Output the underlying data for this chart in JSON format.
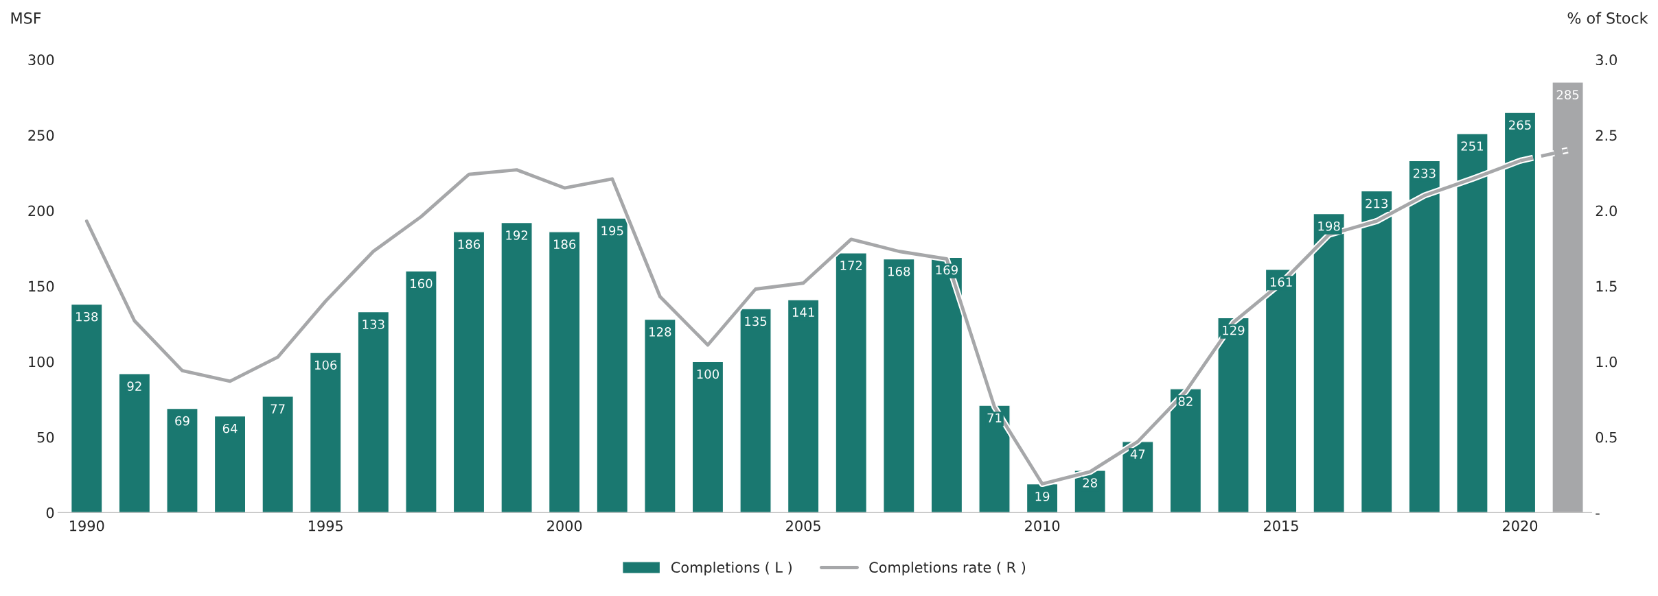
{
  "chart_data": {
    "type": "bar",
    "ylabel": "MSF",
    "y2label": "% of Stock",
    "categories": [
      "1990",
      null,
      null,
      null,
      null,
      "1995",
      null,
      null,
      null,
      null,
      "2000",
      null,
      null,
      null,
      null,
      "2005",
      null,
      null,
      null,
      null,
      "2010",
      null,
      null,
      null,
      null,
      "2015",
      null,
      null,
      null,
      null,
      "2020",
      null
    ],
    "series": [
      {
        "name": "Completions ( L )",
        "color": "#1a7870",
        "value_labels": [
          "138",
          "92",
          "69",
          "64",
          "77",
          "106",
          "133",
          "160",
          "186",
          "192",
          "186",
          "195",
          "128",
          "100",
          "135",
          "141",
          "172",
          "168",
          "169",
          "71",
          "19",
          "28",
          "47",
          "82",
          "129",
          "161",
          "198",
          "213",
          "233",
          "251",
          "265",
          "285"
        ],
        "colors": [
          "#1a7870",
          "#1a7870",
          "#1a7870",
          "#1a7870",
          "#1a7870",
          "#1a7870",
          "#1a7870",
          "#1a7870",
          "#1a7870",
          "#1a7870",
          "#1a7870",
          "#1a7870",
          "#1a7870",
          "#1a7870",
          "#1a7870",
          "#1a7870",
          "#1a7870",
          "#1a7870",
          "#1a7870",
          "#1a7870",
          "#1a7870",
          "#1a7870",
          "#1a7870",
          "#1a7870",
          "#1a7870",
          "#1a7870",
          "#1a7870",
          "#1a7870",
          "#1a7870",
          "#1a7870",
          "#1a7870",
          "#a6a7a9"
        ],
        "values": [
          138,
          92,
          69,
          64,
          77,
          106,
          133,
          160,
          186,
          192,
          186,
          195,
          128,
          100,
          135,
          141,
          172,
          168,
          169,
          71,
          19,
          28,
          47,
          82,
          129,
          161,
          198,
          213,
          233,
          251,
          265,
          285
        ]
      },
      {
        "name": "Completions rate ( R )",
        "type": "line",
        "axis": "y2",
        "color": "#a6a7a9",
        "line_style": "solid",
        "values": [
          1.93,
          1.27,
          0.94,
          0.87,
          1.03,
          1.4,
          1.73,
          1.96,
          2.24,
          2.27,
          2.15,
          2.21,
          1.43,
          1.11,
          1.48,
          1.52,
          1.81,
          1.73,
          1.68,
          0.7,
          0.19,
          0.27,
          0.47,
          0.8,
          1.26,
          1.52,
          1.84,
          1.93,
          2.1,
          2.21,
          2.33,
          null
        ]
      },
      {
        "type": "line",
        "axis": "y2",
        "color": "#a6a7a9",
        "line_style": "dashed",
        "values": [
          null,
          null,
          null,
          null,
          null,
          null,
          null,
          null,
          null,
          null,
          null,
          null,
          null,
          null,
          null,
          null,
          null,
          null,
          null,
          null,
          null,
          null,
          null,
          null,
          null,
          null,
          null,
          null,
          null,
          null,
          2.33,
          2.4
        ]
      }
    ],
    "ylim": [
      0,
      300
    ],
    "yticks": [
      0,
      50,
      100,
      150,
      200,
      250,
      300
    ],
    "y2lim": [
      0,
      3
    ],
    "y2ticks": [
      {
        "value": 0,
        "label": "-"
      },
      {
        "value": 0.5,
        "label": "0.5"
      },
      {
        "value": 1,
        "label": "1.0"
      },
      {
        "value": 1.5,
        "label": "1.5"
      },
      {
        "value": 2,
        "label": "2.0"
      },
      {
        "value": 2.5,
        "label": "2.5"
      },
      {
        "value": 3,
        "label": "3.0"
      }
    ],
    "grid": false,
    "legend": "bottom"
  }
}
